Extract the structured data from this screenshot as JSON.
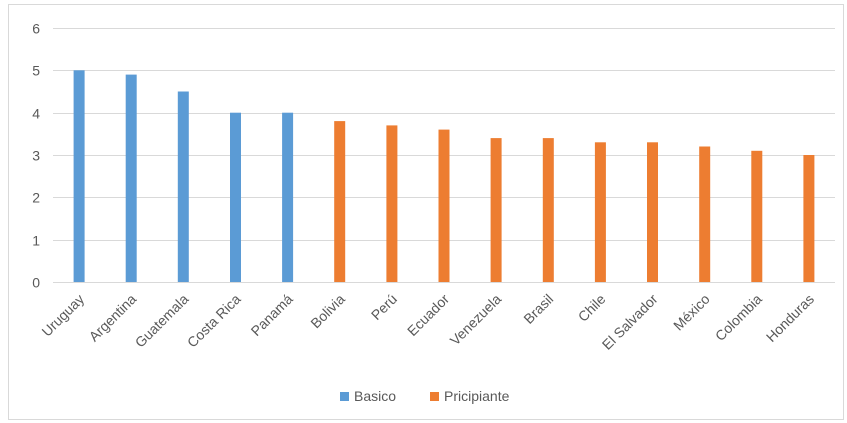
{
  "chart_data": {
    "type": "bar",
    "title": "",
    "xlabel": "",
    "ylabel": "",
    "ylim": [
      0,
      6
    ],
    "yticks": [
      0,
      1,
      2,
      3,
      4,
      5,
      6
    ],
    "grid": true,
    "legend_position": "bottom",
    "categories": [
      "Uruguay",
      "Argentina",
      "Guatemala",
      "Costa Rica",
      "Panamá",
      "Bolivia",
      "Perú",
      "Ecuador",
      "Venezuela",
      "Brasil",
      "Chile",
      "El Salvador",
      "México",
      "Colombia",
      "Honduras"
    ],
    "series": [
      {
        "name": "Basico",
        "color": "#5b9bd5",
        "values": [
          5.0,
          4.9,
          4.5,
          4.0,
          4.0,
          null,
          null,
          null,
          null,
          null,
          null,
          null,
          null,
          null,
          null
        ]
      },
      {
        "name": "Pricipiante",
        "color": "#ed7d31",
        "values": [
          null,
          null,
          null,
          null,
          null,
          3.8,
          3.7,
          3.6,
          3.4,
          3.4,
          3.3,
          3.3,
          3.2,
          3.1,
          3.0
        ]
      }
    ]
  }
}
